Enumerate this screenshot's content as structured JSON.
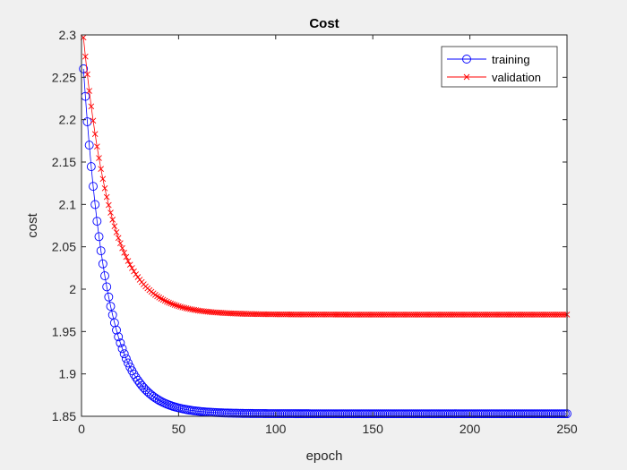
{
  "chart_data": {
    "type": "line",
    "title": "Cost",
    "xlabel": "epoch",
    "ylabel": "cost",
    "xlim": [
      0,
      250
    ],
    "ylim": [
      1.85,
      2.3
    ],
    "xticks": [
      0,
      50,
      100,
      150,
      200,
      250
    ],
    "yticks": [
      1.85,
      1.9,
      1.95,
      2.0,
      2.05,
      2.1,
      2.15,
      2.2,
      2.25,
      2.3
    ],
    "ytick_labels": [
      "1.85",
      "1.9",
      "1.95",
      "2",
      "2.05",
      "2.1",
      "2.15",
      "2.2",
      "2.25",
      "2.3"
    ],
    "grid": false,
    "legend_position": "top-right",
    "series": [
      {
        "name": "training",
        "color": "#0000ff",
        "marker": "circle",
        "model": {
          "start": 2.26,
          "asymptote": 1.853,
          "tau": 12
        },
        "n_points": 250
      },
      {
        "name": "validation",
        "color": "#ff0000",
        "marker": "x",
        "model": {
          "start": 2.297,
          "asymptote": 1.97,
          "tau": 14
        },
        "n_points": 250
      }
    ]
  }
}
